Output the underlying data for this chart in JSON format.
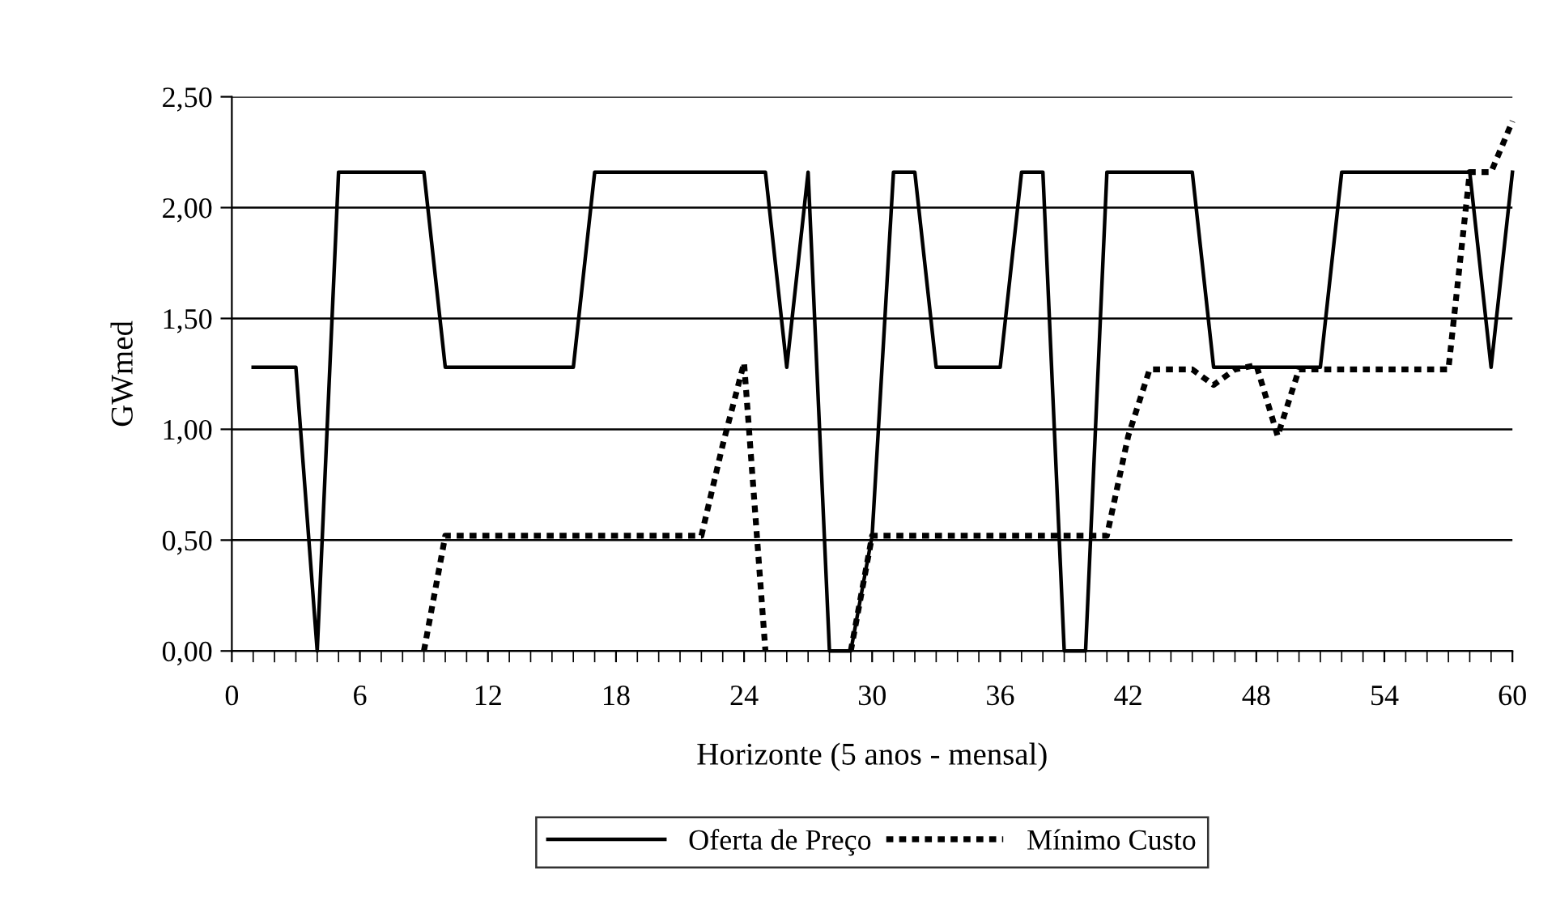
{
  "chart_data": {
    "type": "line",
    "xlabel": "Horizonte (5 anos - mensal)",
    "ylabel": "GWmed",
    "x": [
      1,
      2,
      3,
      4,
      5,
      6,
      7,
      8,
      9,
      10,
      11,
      12,
      13,
      14,
      15,
      16,
      17,
      18,
      19,
      20,
      21,
      22,
      23,
      24,
      25,
      26,
      27,
      28,
      29,
      30,
      31,
      32,
      33,
      34,
      35,
      36,
      37,
      38,
      39,
      40,
      41,
      42,
      43,
      44,
      45,
      46,
      47,
      48,
      49,
      50,
      51,
      52,
      53,
      54,
      55,
      56,
      57,
      58,
      59,
      60
    ],
    "series": [
      {
        "name": "Oferta de Preço",
        "color": "#000000",
        "line_style": "solid",
        "values": [
          1.28,
          1.28,
          1.28,
          0,
          2.16,
          2.16,
          2.16,
          2.16,
          2.16,
          1.28,
          1.28,
          1.28,
          1.28,
          1.28,
          1.28,
          1.28,
          2.16,
          2.16,
          2.16,
          2.16,
          2.16,
          2.16,
          2.16,
          2.16,
          2.16,
          1.28,
          2.16,
          0,
          0,
          0.52,
          2.16,
          2.16,
          1.28,
          1.28,
          1.28,
          1.28,
          2.16,
          2.16,
          0,
          0,
          2.16,
          2.16,
          2.16,
          2.16,
          2.16,
          1.28,
          1.28,
          1.28,
          1.28,
          1.28,
          1.28,
          2.16,
          2.16,
          2.16,
          2.16,
          2.16,
          2.16,
          2.16,
          1.28,
          2.16
        ]
      },
      {
        "name": "Mínimo Custo",
        "color": "#000000",
        "line_style": "dotted",
        "values": [
          null,
          null,
          null,
          null,
          null,
          null,
          null,
          null,
          0,
          0.52,
          0.52,
          0.52,
          0.52,
          0.52,
          0.52,
          0.52,
          0.52,
          0.52,
          0.52,
          0.52,
          0.52,
          0.52,
          0.93,
          1.3,
          0,
          null,
          null,
          null,
          0,
          0.52,
          0.52,
          0.52,
          0.52,
          0.52,
          0.52,
          0.52,
          0.52,
          0.52,
          0.52,
          0.52,
          0.52,
          0.97,
          1.27,
          1.27,
          1.27,
          1.2,
          1.27,
          1.29,
          0.97,
          1.27,
          1.27,
          1.27,
          1.27,
          1.27,
          1.27,
          1.27,
          1.27,
          2.16,
          2.16,
          2.39
        ]
      }
    ],
    "xlim": [
      0,
      60
    ],
    "xticks": [
      0,
      6,
      12,
      18,
      24,
      30,
      36,
      42,
      48,
      54,
      60
    ],
    "ylim": [
      0,
      2.5
    ],
    "yticks": [
      {
        "value": 0,
        "label": "0,00"
      },
      {
        "value": 0.5,
        "label": "0,50"
      },
      {
        "value": 1,
        "label": "1,00"
      },
      {
        "value": 1.5,
        "label": "1,50"
      },
      {
        "value": 2,
        "label": "2,00"
      },
      {
        "value": 2.5,
        "label": "2,50"
      }
    ],
    "grid": "y",
    "legend": "bottom",
    "marker": "none"
  }
}
